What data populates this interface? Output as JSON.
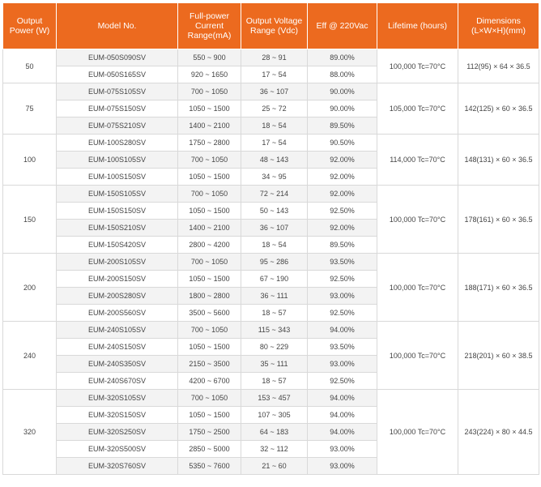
{
  "headers": {
    "power": "Output Power (W)",
    "model": "Model No.",
    "current": "Full-power Current Range(mA)",
    "voltage": "Output Voltage Range (Vdc)",
    "eff": "Eff @ 220Vac",
    "life": "Lifetime (hours)",
    "dims": "Dimensions (L×W×H)(mm)"
  },
  "groups": [
    {
      "power": "50",
      "life": "100,000 Tc=70°C",
      "dims": "112(95) × 64 × 36.5",
      "rows": [
        {
          "model": "EUM-050S090SV",
          "current": "550 ~ 900",
          "voltage": "28 ~ 91",
          "eff": "89.00%"
        },
        {
          "model": "EUM-050S165SV",
          "current": "920 ~ 1650",
          "voltage": "17 ~ 54",
          "eff": "88.00%"
        }
      ]
    },
    {
      "power": "75",
      "life": "105,000 Tc=70°C",
      "dims": "142(125) × 60 × 36.5",
      "rows": [
        {
          "model": "EUM-075S105SV",
          "current": "700 ~ 1050",
          "voltage": "36 ~ 107",
          "eff": "90.00%"
        },
        {
          "model": "EUM-075S150SV",
          "current": "1050 ~ 1500",
          "voltage": "25 ~ 72",
          "eff": "90.00%"
        },
        {
          "model": "EUM-075S210SV",
          "current": "1400 ~ 2100",
          "voltage": "18 ~ 54",
          "eff": "89.50%"
        }
      ]
    },
    {
      "power": "100",
      "life": "114,000 Tc=70°C",
      "dims": "148(131) × 60 × 36.5",
      "rows": [
        {
          "model": "EUM-100S280SV",
          "current": "1750 ~ 2800",
          "voltage": "17 ~ 54",
          "eff": "90.50%"
        },
        {
          "model": "EUM-100S105SV",
          "current": "700 ~ 1050",
          "voltage": "48 ~ 143",
          "eff": "92.00%"
        },
        {
          "model": "EUM-100S150SV",
          "current": "1050 ~ 1500",
          "voltage": "34 ~ 95",
          "eff": "92.00%"
        }
      ]
    },
    {
      "power": "150",
      "life": "100,000 Tc=70°C",
      "dims": "178(161) × 60 × 36.5",
      "rows": [
        {
          "model": "EUM-150S105SV",
          "current": "700 ~ 1050",
          "voltage": "72 ~ 214",
          "eff": "92.00%"
        },
        {
          "model": "EUM-150S150SV",
          "current": "1050 ~ 1500",
          "voltage": "50 ~ 143",
          "eff": "92.50%"
        },
        {
          "model": "EUM-150S210SV",
          "current": "1400 ~ 2100",
          "voltage": "36 ~ 107",
          "eff": "92.00%"
        },
        {
          "model": "EUM-150S420SV",
          "current": "2800 ~ 4200",
          "voltage": "18 ~ 54",
          "eff": "89.50%"
        }
      ]
    },
    {
      "power": "200",
      "life": "100,000 Tc=70°C",
      "dims": "188(171) × 60 × 36.5",
      "rows": [
        {
          "model": "EUM-200S105SV",
          "current": "700 ~ 1050",
          "voltage": "95 ~ 286",
          "eff": "93.50%"
        },
        {
          "model": "EUM-200S150SV",
          "current": "1050 ~ 1500",
          "voltage": "67 ~ 190",
          "eff": "92.50%"
        },
        {
          "model": "EUM-200S280SV",
          "current": "1800 ~ 2800",
          "voltage": "36 ~ 111",
          "eff": "93.00%"
        },
        {
          "model": "EUM-200S560SV",
          "current": "3500 ~ 5600",
          "voltage": "18 ~ 57",
          "eff": "92.50%"
        }
      ]
    },
    {
      "power": "240",
      "life": "100,000 Tc=70°C",
      "dims": "218(201) × 60 × 38.5",
      "rows": [
        {
          "model": "EUM-240S105SV",
          "current": "700 ~ 1050",
          "voltage": "115 ~ 343",
          "eff": "94.00%"
        },
        {
          "model": "EUM-240S150SV",
          "current": "1050 ~ 1500",
          "voltage": "80 ~ 229",
          "eff": "93.50%"
        },
        {
          "model": "EUM-240S350SV",
          "current": "2150 ~ 3500",
          "voltage": "35 ~ 111",
          "eff": "93.00%"
        },
        {
          "model": "EUM-240S670SV",
          "current": "4200 ~ 6700",
          "voltage": "18 ~ 57",
          "eff": "92.50%"
        }
      ]
    },
    {
      "power": "320",
      "life": "100,000 Tc=70°C",
      "dims": "243(224) × 80 × 44.5",
      "rows": [
        {
          "model": "EUM-320S105SV",
          "current": "700 ~ 1050",
          "voltage": "153 ~ 457",
          "eff": "94.00%"
        },
        {
          "model": "EUM-320S150SV",
          "current": "1050 ~ 1500",
          "voltage": "107 ~ 305",
          "eff": "94.00%"
        },
        {
          "model": "EUM-320S250SV",
          "current": "1750 ~ 2500",
          "voltage": "64 ~ 183",
          "eff": "94.00%"
        },
        {
          "model": "EUM-320S500SV",
          "current": "2850 ~ 5000",
          "voltage": "32 ~ 112",
          "eff": "93.00%"
        },
        {
          "model": "EUM-320S760SV",
          "current": "5350 ~ 7600",
          "voltage": "21 ~ 60",
          "eff": "93.00%"
        }
      ]
    }
  ]
}
